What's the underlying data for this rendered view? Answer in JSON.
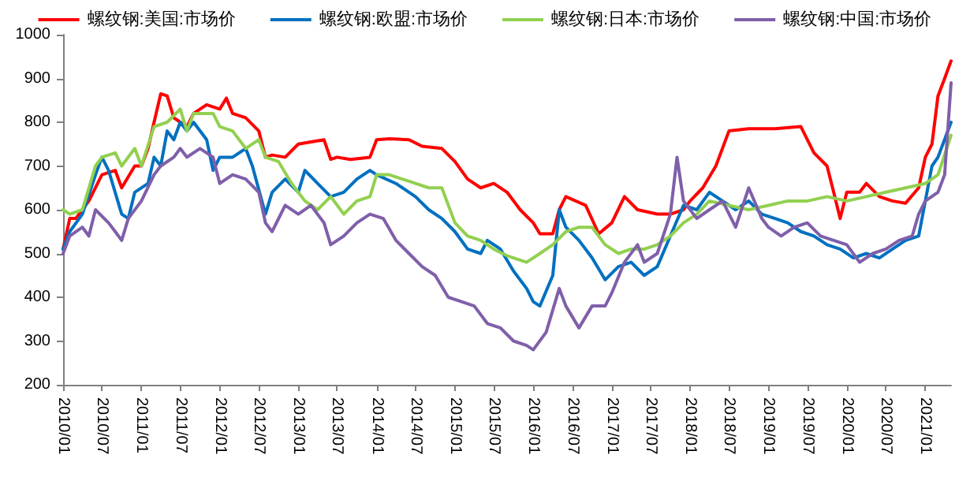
{
  "chart_data": {
    "type": "line",
    "xlim": [
      "2010-01",
      "2021-05"
    ],
    "xticks": [
      {
        "value": "2010-01",
        "label": "2010/01"
      },
      {
        "value": "2010-07",
        "label": "2010/07"
      },
      {
        "value": "2011-01",
        "label": "2011/01"
      },
      {
        "value": "2011-07",
        "label": "2011/07"
      },
      {
        "value": "2012-01",
        "label": "2012/01"
      },
      {
        "value": "2012-07",
        "label": "2012/07"
      },
      {
        "value": "2013-01",
        "label": "2013/01"
      },
      {
        "value": "2013-07",
        "label": "2013/07"
      },
      {
        "value": "2014-01",
        "label": "2014/01"
      },
      {
        "value": "2014-07",
        "label": "2014/07"
      },
      {
        "value": "2015-01",
        "label": "2015/01"
      },
      {
        "value": "2015-07",
        "label": "2015/07"
      },
      {
        "value": "2016-01",
        "label": "2016/01"
      },
      {
        "value": "2016-07",
        "label": "2016/07"
      },
      {
        "value": "2017-01",
        "label": "2017/01"
      },
      {
        "value": "2017-07",
        "label": "2017/07"
      },
      {
        "value": "2018-01",
        "label": "2018/01"
      },
      {
        "value": "2018-07",
        "label": "2018/07"
      },
      {
        "value": "2019-01",
        "label": "2019/01"
      },
      {
        "value": "2019-07",
        "label": "2019/07"
      },
      {
        "value": "2020-01",
        "label": "2020/01"
      },
      {
        "value": "2020-07",
        "label": "2020/07"
      },
      {
        "value": "2021-01",
        "label": "2021/01"
      }
    ],
    "ylim": [
      200,
      1000
    ],
    "yticks": [
      200,
      300,
      400,
      500,
      600,
      700,
      800,
      900,
      1000
    ],
    "grid": false,
    "legend": "top",
    "marker": "none",
    "line_style": "solid",
    "series": [
      {
        "name": "螺纹钢:美国:市场价",
        "color": "#ff0000",
        "x": [
          "2010-01",
          "2010-02",
          "2010-03",
          "2010-05",
          "2010-07",
          "2010-09",
          "2010-10",
          "2010-12",
          "2011-01",
          "2011-02",
          "2011-03",
          "2011-04",
          "2011-05",
          "2011-06",
          "2011-07",
          "2011-08",
          "2011-09",
          "2011-11",
          "2012-01",
          "2012-02",
          "2012-03",
          "2012-05",
          "2012-07",
          "2012-08",
          "2012-09",
          "2012-11",
          "2013-01",
          "2013-03",
          "2013-05",
          "2013-06",
          "2013-07",
          "2013-09",
          "2013-12",
          "2014-01",
          "2014-03",
          "2014-06",
          "2014-08",
          "2014-11",
          "2015-01",
          "2015-03",
          "2015-05",
          "2015-07",
          "2015-09",
          "2015-11",
          "2016-01",
          "2016-02",
          "2016-04",
          "2016-05",
          "2016-06",
          "2016-09",
          "2016-11",
          "2017-01",
          "2017-03",
          "2017-05",
          "2017-08",
          "2017-10",
          "2017-12",
          "2018-01",
          "2018-03",
          "2018-05",
          "2018-07",
          "2018-10",
          "2019-02",
          "2019-06",
          "2019-08",
          "2019-10",
          "2019-11",
          "2019-12",
          "2020-01",
          "2020-03",
          "2020-04",
          "2020-06",
          "2020-08",
          "2020-10",
          "2020-12",
          "2021-01",
          "2021-02",
          "2021-03",
          "2021-04",
          "2021-05"
        ],
        "values": [
          510,
          580,
          580,
          620,
          680,
          690,
          650,
          700,
          700,
          740,
          800,
          865,
          860,
          810,
          800,
          790,
          820,
          840,
          830,
          855,
          820,
          810,
          780,
          720,
          725,
          720,
          750,
          755,
          760,
          715,
          720,
          715,
          720,
          760,
          762,
          760,
          745,
          740,
          710,
          670,
          650,
          660,
          640,
          600,
          570,
          545,
          545,
          600,
          630,
          610,
          545,
          570,
          630,
          600,
          590,
          590,
          600,
          620,
          650,
          700,
          780,
          785,
          785,
          790,
          730,
          700,
          640,
          580,
          640,
          640,
          660,
          630,
          620,
          615,
          650,
          720,
          750,
          860,
          900,
          940
        ]
      },
      {
        "name": "螺纹钢:欧盟:市场价",
        "color": "#0070c0",
        "x": [
          "2010-01",
          "2010-02",
          "2010-04",
          "2010-06",
          "2010-07",
          "2010-08",
          "2010-10",
          "2010-11",
          "2010-12",
          "2011-02",
          "2011-03",
          "2011-04",
          "2011-05",
          "2011-06",
          "2011-07",
          "2011-08",
          "2011-09",
          "2011-11",
          "2011-12",
          "2012-01",
          "2012-03",
          "2012-05",
          "2012-06",
          "2012-08",
          "2012-09",
          "2012-11",
          "2013-01",
          "2013-02",
          "2013-04",
          "2013-06",
          "2013-08",
          "2013-10",
          "2013-12",
          "2014-01",
          "2014-04",
          "2014-07",
          "2014-09",
          "2014-11",
          "2015-01",
          "2015-03",
          "2015-05",
          "2015-06",
          "2015-08",
          "2015-10",
          "2015-12",
          "2016-01",
          "2016-02",
          "2016-04",
          "2016-05",
          "2016-06",
          "2016-08",
          "2016-10",
          "2016-12",
          "2017-02",
          "2017-04",
          "2017-06",
          "2017-08",
          "2017-10",
          "2017-12",
          "2018-02",
          "2018-04",
          "2018-06",
          "2018-08",
          "2018-10",
          "2018-12",
          "2019-02",
          "2019-04",
          "2019-06",
          "2019-08",
          "2019-10",
          "2019-12",
          "2020-02",
          "2020-04",
          "2020-06",
          "2020-08",
          "2020-10",
          "2020-12",
          "2021-01",
          "2021-02",
          "2021-03",
          "2021-05"
        ],
        "values": [
          510,
          550,
          590,
          680,
          720,
          690,
          590,
          580,
          640,
          660,
          720,
          700,
          780,
          760,
          800,
          780,
          800,
          760,
          690,
          720,
          720,
          740,
          700,
          590,
          640,
          670,
          640,
          690,
          660,
          630,
          640,
          670,
          690,
          680,
          660,
          630,
          600,
          580,
          550,
          510,
          500,
          530,
          510,
          460,
          420,
          390,
          380,
          450,
          600,
          560,
          530,
          490,
          440,
          470,
          480,
          450,
          470,
          540,
          610,
          600,
          640,
          620,
          600,
          620,
          590,
          580,
          570,
          550,
          540,
          520,
          510,
          490,
          500,
          490,
          510,
          530,
          540,
          620,
          700,
          720,
          800
        ]
      },
      {
        "name": "螺纹钢:日本:市场价",
        "color": "#92d050",
        "x": [
          "2010-01",
          "2010-02",
          "2010-04",
          "2010-06",
          "2010-07",
          "2010-09",
          "2010-10",
          "2010-12",
          "2011-01",
          "2011-03",
          "2011-05",
          "2011-07",
          "2011-08",
          "2011-09",
          "2011-12",
          "2012-01",
          "2012-03",
          "2012-05",
          "2012-07",
          "2012-08",
          "2012-10",
          "2012-12",
          "2013-02",
          "2013-04",
          "2013-06",
          "2013-08",
          "2013-10",
          "2013-12",
          "2014-01",
          "2014-03",
          "2014-06",
          "2014-09",
          "2014-11",
          "2015-01",
          "2015-03",
          "2015-05",
          "2015-07",
          "2015-09",
          "2015-12",
          "2016-02",
          "2016-04",
          "2016-06",
          "2016-08",
          "2016-10",
          "2016-12",
          "2017-02",
          "2017-04",
          "2017-06",
          "2017-08",
          "2017-10",
          "2017-12",
          "2018-02",
          "2018-04",
          "2018-07",
          "2018-10",
          "2019-01",
          "2019-04",
          "2019-07",
          "2019-10",
          "2020-01",
          "2020-04",
          "2020-07",
          "2020-10",
          "2021-01",
          "2021-03",
          "2021-05"
        ],
        "values": [
          600,
          590,
          600,
          700,
          720,
          730,
          700,
          740,
          700,
          790,
          800,
          830,
          780,
          820,
          820,
          790,
          780,
          740,
          760,
          720,
          710,
          660,
          620,
          600,
          630,
          590,
          620,
          630,
          680,
          680,
          665,
          650,
          650,
          570,
          540,
          530,
          510,
          495,
          480,
          500,
          520,
          550,
          560,
          560,
          520,
          500,
          510,
          510,
          520,
          540,
          570,
          590,
          620,
          610,
          600,
          610,
          620,
          620,
          630,
          620,
          630,
          640,
          650,
          660,
          680,
          770
        ]
      },
      {
        "name": "螺纹钢:中国:市场价",
        "color": "#7f5fa9",
        "x": [
          "2010-01",
          "2010-02",
          "2010-04",
          "2010-05",
          "2010-06",
          "2010-08",
          "2010-09",
          "2010-10",
          "2010-11",
          "2011-01",
          "2011-03",
          "2011-04",
          "2011-06",
          "2011-07",
          "2011-08",
          "2011-10",
          "2011-12",
          "2012-01",
          "2012-03",
          "2012-05",
          "2012-07",
          "2012-08",
          "2012-09",
          "2012-11",
          "2013-01",
          "2013-03",
          "2013-05",
          "2013-06",
          "2013-08",
          "2013-10",
          "2013-12",
          "2014-02",
          "2014-04",
          "2014-06",
          "2014-08",
          "2014-10",
          "2014-12",
          "2015-02",
          "2015-04",
          "2015-06",
          "2015-08",
          "2015-10",
          "2015-12",
          "2016-01",
          "2016-03",
          "2016-05",
          "2016-06",
          "2016-08",
          "2016-10",
          "2016-12",
          "2017-01",
          "2017-03",
          "2017-05",
          "2017-06",
          "2017-08",
          "2017-10",
          "2017-11",
          "2017-12",
          "2018-02",
          "2018-04",
          "2018-06",
          "2018-08",
          "2018-10",
          "2018-12",
          "2019-01",
          "2019-03",
          "2019-05",
          "2019-07",
          "2019-09",
          "2019-11",
          "2020-01",
          "2020-03",
          "2020-05",
          "2020-07",
          "2020-09",
          "2020-11",
          "2020-12",
          "2021-01",
          "2021-03",
          "2021-04",
          "2021-05"
        ],
        "values": [
          500,
          540,
          560,
          540,
          600,
          570,
          550,
          530,
          580,
          620,
          680,
          700,
          720,
          740,
          720,
          740,
          720,
          660,
          680,
          670,
          640,
          570,
          550,
          610,
          590,
          610,
          570,
          520,
          540,
          570,
          590,
          580,
          530,
          500,
          470,
          450,
          400,
          390,
          380,
          340,
          330,
          300,
          290,
          280,
          320,
          420,
          380,
          330,
          380,
          380,
          410,
          480,
          520,
          480,
          500,
          590,
          720,
          620,
          580,
          600,
          620,
          560,
          650,
          580,
          560,
          540,
          560,
          570,
          540,
          530,
          520,
          480,
          500,
          510,
          530,
          540,
          590,
          620,
          640,
          680,
          890
        ]
      }
    ]
  }
}
